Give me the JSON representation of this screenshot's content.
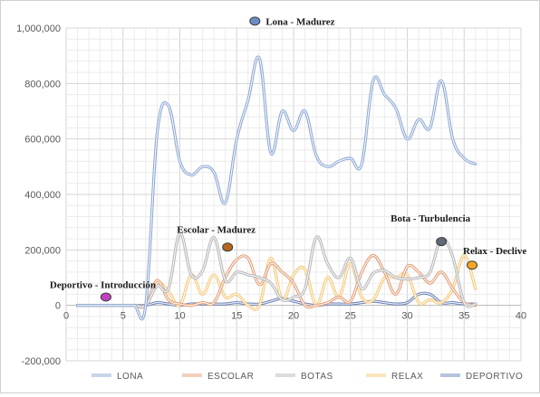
{
  "chart_data": {
    "type": "line",
    "title": "",
    "xlabel": "",
    "ylabel": "",
    "xlim": [
      0,
      40
    ],
    "ylim": [
      -200000,
      1000000
    ],
    "x_ticks": [
      "0",
      "5",
      "10",
      "15",
      "20",
      "25",
      "30",
      "35",
      "40"
    ],
    "y_ticks": [
      "-200,000",
      "0",
      "200,000",
      "400,000",
      "600,000",
      "800,000",
      "1,000,000"
    ],
    "grid": true,
    "legend_position": "bottom",
    "x": [
      1,
      2,
      3,
      4,
      5,
      6,
      7,
      8,
      9,
      10,
      11,
      12,
      13,
      14,
      15,
      16,
      17,
      18,
      19,
      20,
      21,
      22,
      23,
      24,
      25,
      26,
      27,
      28,
      29,
      30,
      31,
      32,
      33,
      34,
      35,
      36
    ],
    "series": [
      {
        "name": "LONA",
        "color": "#8fa9d6",
        "values": [
          0,
          0,
          0,
          0,
          0,
          0,
          0,
          620000,
          720000,
          520000,
          470000,
          500000,
          480000,
          370000,
          600000,
          740000,
          890000,
          550000,
          700000,
          630000,
          700000,
          540000,
          500000,
          520000,
          530000,
          510000,
          810000,
          760000,
          710000,
          600000,
          670000,
          640000,
          810000,
          600000,
          530000,
          510000
        ]
      },
      {
        "name": "ESCOLAR",
        "color": "#e3a07a",
        "values": [
          0,
          0,
          0,
          0,
          0,
          0,
          0,
          90000,
          20000,
          5000,
          0,
          10000,
          10000,
          100000,
          165000,
          170000,
          75000,
          150000,
          120000,
          80000,
          0,
          0,
          10000,
          30000,
          15000,
          120000,
          180000,
          120000,
          40000,
          140000,
          120000,
          80000,
          120000,
          60000,
          10000,
          0
        ]
      },
      {
        "name": "BOTAS",
        "color": "#b8b8b8",
        "values": [
          0,
          0,
          0,
          0,
          0,
          0,
          0,
          70000,
          60000,
          260000,
          110000,
          125000,
          245000,
          90000,
          120000,
          110000,
          100000,
          80000,
          20000,
          30000,
          60000,
          245000,
          150000,
          100000,
          170000,
          60000,
          115000,
          125000,
          100000,
          95000,
          100000,
          120000,
          240000,
          175000,
          10000,
          5000
        ]
      },
      {
        "name": "RELAX",
        "color": "#f5c97a",
        "values": [
          0,
          0,
          0,
          0,
          0,
          0,
          0,
          80000,
          50000,
          0,
          110000,
          40000,
          110000,
          30000,
          40000,
          0,
          0,
          170000,
          20000,
          110000,
          130000,
          0,
          100000,
          30000,
          150000,
          30000,
          20000,
          100000,
          100000,
          110000,
          10000,
          20000,
          10000,
          60000,
          180000,
          60000
        ]
      },
      {
        "name": "DEPORTIVO",
        "color": "#6f86b8",
        "values": [
          0,
          0,
          0,
          0,
          0,
          0,
          0,
          10000,
          5000,
          0,
          5000,
          5000,
          5000,
          5000,
          10000,
          5000,
          5000,
          15000,
          25000,
          15000,
          5000,
          0,
          5000,
          5000,
          5000,
          10000,
          15000,
          10000,
          5000,
          10000,
          40000,
          40000,
          10000,
          10000,
          5000,
          5000
        ]
      }
    ],
    "annotations": [
      {
        "label": "Lona - Madurez",
        "x": 16.5,
        "y": 1000000,
        "marker_color": "#6b8cc4",
        "marker_x": 16.6,
        "marker_y": 1025000,
        "text_dx": 12,
        "text_dy": 4
      },
      {
        "label": "Escolar - Madurez",
        "x": 14,
        "y": 210000,
        "marker_color": "#b5651d",
        "marker_x": 14.2,
        "marker_y": 210000,
        "text_dx": -56,
        "text_dy": -16
      },
      {
        "label": "Bota - Turbulencia",
        "x": 33,
        "y": 230000,
        "marker_color": "#606a78",
        "marker_x": 33.0,
        "marker_y": 230000,
        "text_dx": -56,
        "text_dy": -22
      },
      {
        "label": "Relax - Declive",
        "x": 35.5,
        "y": 145000,
        "marker_color": "#f5a623",
        "marker_x": 35.7,
        "marker_y": 145000,
        "text_dx": -10,
        "text_dy": -12
      },
      {
        "label": "Deportivo - Introducción",
        "x": 3.5,
        "y": 30000,
        "marker_color": "#c040c0",
        "marker_x": 3.5,
        "marker_y": 30000,
        "text_dx": -62,
        "text_dy": -10
      }
    ]
  }
}
